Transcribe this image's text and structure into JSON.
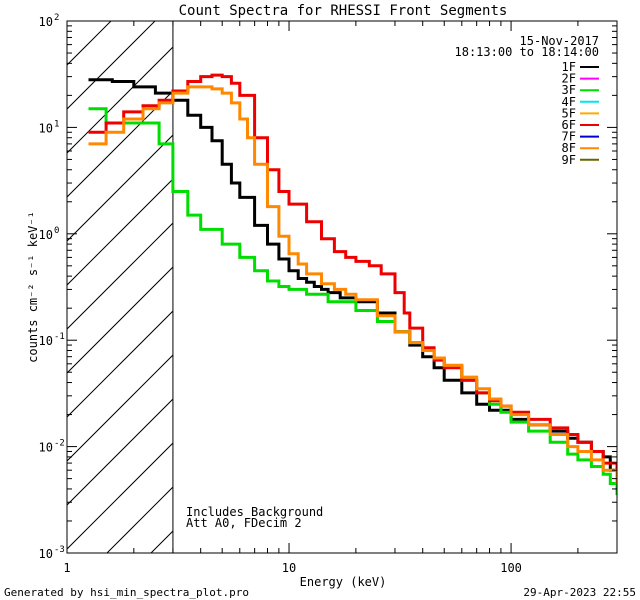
{
  "chart_data": {
    "type": "line",
    "title": "Count Spectra for RHESSI Front Segments",
    "xlabel": "Energy (keV)",
    "ylabel": "counts cm⁻² s⁻¹ keV⁻¹",
    "xscale": "log",
    "yscale": "log",
    "xlim": [
      1,
      300
    ],
    "ylim": [
      0.001,
      100
    ],
    "x_ticks": [
      {
        "value": 1,
        "label": "1"
      },
      {
        "value": 10,
        "label": "10"
      },
      {
        "value": 100,
        "label": "100"
      }
    ],
    "y_ticks": [
      {
        "value": 0.001,
        "mantissa": "10",
        "exp": "-3"
      },
      {
        "value": 0.01,
        "mantissa": "10",
        "exp": "-2"
      },
      {
        "value": 0.1,
        "mantissa": "10",
        "exp": "-1"
      },
      {
        "value": 1,
        "mantissa": "10",
        "exp": "0"
      },
      {
        "value": 10,
        "mantissa": "10",
        "exp": "1"
      },
      {
        "value": 100,
        "mantissa": "10",
        "exp": "2"
      }
    ],
    "date": "15-Nov-2017",
    "time_range": "18:13:00 to 18:14:00",
    "shaded_region_keV": [
      1,
      3
    ],
    "annotations": [
      "Includes Background",
      "Att A0, FDecim 2"
    ],
    "legend_position": "top-right",
    "legend": [
      {
        "name": "1F",
        "color": "#000000"
      },
      {
        "name": "2F",
        "color": "#ff00ff"
      },
      {
        "name": "3F",
        "color": "#00dd00"
      },
      {
        "name": "4F",
        "color": "#00e5ee"
      },
      {
        "name": "5F",
        "color": "#ffaa00"
      },
      {
        "name": "6F",
        "color": "#ee0000"
      },
      {
        "name": "7F",
        "color": "#0000cc"
      },
      {
        "name": "8F",
        "color": "#ff8800"
      },
      {
        "name": "9F",
        "color": "#666600"
      }
    ],
    "series": [
      {
        "name": "1F",
        "color": "#000000",
        "x": [
          1.25,
          1.6,
          2.0,
          2.5,
          3.0,
          3.5,
          4.0,
          4.5,
          5.0,
          5.5,
          6.0,
          7.0,
          8.0,
          9.0,
          10.0,
          11.0,
          12.0,
          13.0,
          14.0,
          15.0,
          17.0,
          20.0,
          25.0,
          30.0,
          35.0,
          40.0,
          45.0,
          50.0,
          60.0,
          70.0,
          80.0,
          100.0,
          120.0,
          150.0,
          180.0,
          200.0,
          230.0,
          260.0,
          280.0,
          300.0
        ],
        "y": [
          28,
          27,
          24,
          21,
          18,
          13,
          10,
          7.5,
          4.5,
          3,
          2.2,
          1.2,
          0.8,
          0.58,
          0.45,
          0.38,
          0.35,
          0.32,
          0.3,
          0.28,
          0.25,
          0.23,
          0.18,
          0.12,
          0.09,
          0.07,
          0.055,
          0.042,
          0.032,
          0.025,
          0.022,
          0.018,
          0.016,
          0.014,
          0.012,
          0.011,
          0.009,
          0.008,
          0.006,
          0.0045
        ]
      },
      {
        "name": "3F",
        "color": "#00dd00",
        "x": [
          1.25,
          1.5,
          1.8,
          2.2,
          2.6,
          3.0,
          3.5,
          4.0,
          5.0,
          6.0,
          7.0,
          8.0,
          9.0,
          10.0,
          12.0,
          15.0,
          20.0,
          25.0,
          30.0,
          35.0,
          40.0,
          45.0,
          50.0,
          60.0,
          70.0,
          80.0,
          90.0,
          100.0,
          120.0,
          150.0,
          180.0,
          200.0,
          230.0,
          260.0,
          280.0,
          300.0
        ],
        "y": [
          15,
          11,
          11,
          11,
          7,
          2.5,
          1.5,
          1.1,
          0.8,
          0.6,
          0.45,
          0.36,
          0.32,
          0.3,
          0.27,
          0.23,
          0.19,
          0.15,
          0.12,
          0.095,
          0.08,
          0.068,
          0.058,
          0.042,
          0.032,
          0.025,
          0.021,
          0.017,
          0.014,
          0.011,
          0.0085,
          0.0075,
          0.0065,
          0.0055,
          0.0045,
          0.0035
        ]
      },
      {
        "name": "6F",
        "color": "#ee0000",
        "x": [
          1.25,
          1.5,
          1.8,
          2.2,
          2.6,
          3.0,
          3.5,
          4.0,
          4.5,
          5.0,
          5.5,
          6.0,
          7.0,
          8.0,
          9.0,
          10.0,
          12.0,
          14.0,
          16.0,
          18.0,
          20.0,
          23.0,
          26.0,
          30.0,
          33.0,
          35.0,
          40.0,
          45.0,
          50.0,
          60.0,
          70.0,
          80.0,
          90.0,
          100.0,
          120.0,
          150.0,
          180.0,
          200.0,
          230.0,
          260.0,
          300.0
        ],
        "y": [
          9,
          11,
          14,
          16,
          18,
          22,
          27,
          30,
          31,
          30,
          26,
          20,
          8,
          4,
          2.5,
          1.9,
          1.3,
          0.9,
          0.68,
          0.6,
          0.55,
          0.5,
          0.42,
          0.28,
          0.18,
          0.13,
          0.085,
          0.065,
          0.055,
          0.042,
          0.032,
          0.027,
          0.024,
          0.021,
          0.018,
          0.015,
          0.013,
          0.011,
          0.009,
          0.007,
          0.005
        ]
      },
      {
        "name": "8F",
        "color": "#ff8800",
        "x": [
          1.25,
          1.5,
          1.8,
          2.2,
          2.6,
          3.0,
          3.5,
          4.0,
          4.5,
          5.0,
          5.5,
          6.0,
          6.5,
          7.0,
          8.0,
          9.0,
          10.0,
          11.0,
          12.0,
          14.0,
          16.0,
          18.0,
          20.0,
          25.0,
          30.0,
          35.0,
          40.0,
          45.0,
          50.0,
          60.0,
          70.0,
          80.0,
          90.0,
          100.0,
          120.0,
          150.0,
          180.0,
          200.0,
          230.0,
          260.0,
          300.0
        ],
        "y": [
          7,
          9,
          12,
          15,
          17,
          21,
          24,
          24,
          23,
          21,
          17,
          12,
          8,
          4.5,
          1.8,
          0.95,
          0.65,
          0.52,
          0.42,
          0.34,
          0.3,
          0.27,
          0.24,
          0.17,
          0.12,
          0.095,
          0.08,
          0.068,
          0.058,
          0.045,
          0.035,
          0.028,
          0.024,
          0.02,
          0.016,
          0.013,
          0.01,
          0.009,
          0.0075,
          0.006,
          0.0045
        ]
      }
    ]
  },
  "footer": {
    "left": "Generated by hsi_min_spectra_plot.pro",
    "right": "29-Apr-2023 22:55"
  }
}
